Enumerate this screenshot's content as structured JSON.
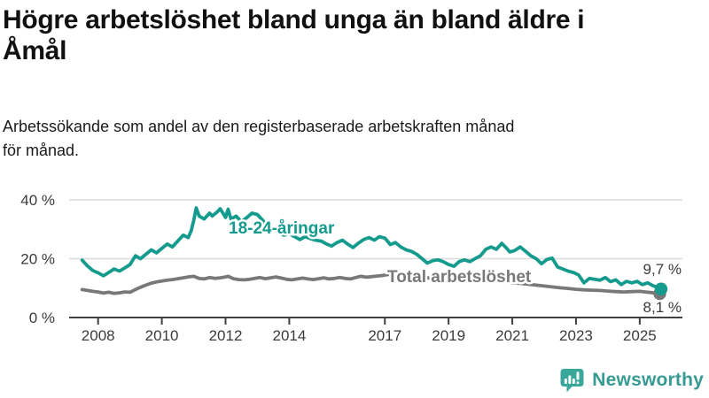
{
  "header": {
    "title_lines": [
      "Högre arbetslöshet bland unga än bland äldre i",
      "Åmål"
    ],
    "subtitle_lines": [
      "Arbetssökande som andel av den registerbaserade arbetskraften månad",
      "för månad."
    ]
  },
  "branding": {
    "name": "Newsworthy",
    "icon": "bar-chart-speech-bubble-icon",
    "color": "#379a93",
    "icon_color": "#3aa79b"
  },
  "chart_data": {
    "type": "line",
    "title": "Högre arbetslöshet bland unga än bland äldre i Åmål",
    "subtitle": "Arbetssökande som andel av den registerbaserade arbetskraften månad för månad.",
    "unit": "%",
    "xlim": [
      2007.4,
      2025.95
    ],
    "ylim": [
      0,
      42
    ],
    "grid": "horizontal",
    "legend_position": "inline-labels",
    "colors": {
      "young": "#149b8d",
      "total": "#787878",
      "axis": "#404040",
      "gridline": "#dcdcdc"
    },
    "yticks": [
      {
        "value": 0,
        "label": "0 %"
      },
      {
        "value": 20,
        "label": "20 %"
      },
      {
        "value": 40,
        "label": "40 %"
      }
    ],
    "xticks": [
      {
        "value": 2008,
        "label": "2008"
      },
      {
        "value": 2010,
        "label": "2010"
      },
      {
        "value": 2012,
        "label": "2012"
      },
      {
        "value": 2014,
        "label": "2014"
      },
      {
        "value": 2017,
        "label": "2017"
      },
      {
        "value": 2019,
        "label": "2019"
      },
      {
        "value": 2021,
        "label": "2021"
      },
      {
        "value": 2023,
        "label": "2023"
      },
      {
        "value": 2025,
        "label": "2025"
      }
    ],
    "series": [
      {
        "name": "18-24-åringar",
        "color": "#149b8d",
        "end_value_label": "9,7 %",
        "last_value": 9.7,
        "points": [
          [
            2007.5,
            19.5
          ],
          [
            2007.67,
            17.5
          ],
          [
            2007.83,
            16.0
          ],
          [
            2008.0,
            15.2
          ],
          [
            2008.17,
            14.2
          ],
          [
            2008.33,
            15.3
          ],
          [
            2008.5,
            16.5
          ],
          [
            2008.67,
            15.8
          ],
          [
            2008.83,
            16.8
          ],
          [
            2009.0,
            18.0
          ],
          [
            2009.17,
            21.0
          ],
          [
            2009.33,
            20.0
          ],
          [
            2009.5,
            21.5
          ],
          [
            2009.67,
            23.0
          ],
          [
            2009.83,
            22.0
          ],
          [
            2010.0,
            23.5
          ],
          [
            2010.17,
            25.0
          ],
          [
            2010.33,
            24.0
          ],
          [
            2010.5,
            26.0
          ],
          [
            2010.67,
            28.0
          ],
          [
            2010.83,
            27.2
          ],
          [
            2010.92,
            29.5
          ],
          [
            2011.0,
            33.0
          ],
          [
            2011.08,
            37.3
          ],
          [
            2011.17,
            34.5
          ],
          [
            2011.33,
            33.5
          ],
          [
            2011.5,
            35.5
          ],
          [
            2011.58,
            34.5
          ],
          [
            2011.75,
            36.0
          ],
          [
            2011.83,
            37.0
          ],
          [
            2011.92,
            35.5
          ],
          [
            2012.0,
            34.0
          ],
          [
            2012.08,
            36.8
          ],
          [
            2012.17,
            33.5
          ],
          [
            2012.33,
            34.5
          ],
          [
            2012.5,
            32.5
          ],
          [
            2012.67,
            34.0
          ],
          [
            2012.83,
            35.5
          ],
          [
            2013.0,
            35.0
          ],
          [
            2013.17,
            33.0
          ],
          [
            2013.33,
            31.0
          ],
          [
            2013.5,
            30.0
          ],
          [
            2013.67,
            29.0
          ],
          [
            2013.83,
            28.0
          ],
          [
            2014.0,
            28.5
          ],
          [
            2014.17,
            27.5
          ],
          [
            2014.33,
            26.5
          ],
          [
            2014.5,
            27.5
          ],
          [
            2014.67,
            26.8
          ],
          [
            2014.83,
            26.3
          ],
          [
            2015.0,
            26.0
          ],
          [
            2015.17,
            25.0
          ],
          [
            2015.33,
            24.3
          ],
          [
            2015.5,
            25.5
          ],
          [
            2015.67,
            26.3
          ],
          [
            2015.83,
            25.0
          ],
          [
            2016.0,
            23.8
          ],
          [
            2016.17,
            25.3
          ],
          [
            2016.33,
            26.5
          ],
          [
            2016.5,
            27.2
          ],
          [
            2016.67,
            26.3
          ],
          [
            2016.83,
            27.5
          ],
          [
            2017.0,
            27.0
          ],
          [
            2017.17,
            24.8
          ],
          [
            2017.33,
            25.5
          ],
          [
            2017.5,
            24.0
          ],
          [
            2017.67,
            23.0
          ],
          [
            2017.83,
            22.5
          ],
          [
            2018.0,
            21.5
          ],
          [
            2018.17,
            20.0
          ],
          [
            2018.33,
            18.5
          ],
          [
            2018.5,
            19.3
          ],
          [
            2018.67,
            19.6
          ],
          [
            2018.83,
            19.0
          ],
          [
            2019.0,
            18.0
          ],
          [
            2019.17,
            17.4
          ],
          [
            2019.33,
            19.0
          ],
          [
            2019.5,
            19.6
          ],
          [
            2019.67,
            19.0
          ],
          [
            2019.83,
            20.0
          ],
          [
            2020.0,
            21.0
          ],
          [
            2020.17,
            23.2
          ],
          [
            2020.33,
            24.0
          ],
          [
            2020.5,
            23.2
          ],
          [
            2020.67,
            25.2
          ],
          [
            2020.83,
            23.5
          ],
          [
            2020.92,
            22.3
          ],
          [
            2021.08,
            22.8
          ],
          [
            2021.25,
            24.0
          ],
          [
            2021.42,
            22.5
          ],
          [
            2021.58,
            21.0
          ],
          [
            2021.75,
            20.0
          ],
          [
            2021.92,
            18.3
          ],
          [
            2022.08,
            19.7
          ],
          [
            2022.25,
            20.2
          ],
          [
            2022.42,
            17.2
          ],
          [
            2022.58,
            16.5
          ],
          [
            2022.75,
            15.8
          ],
          [
            2022.92,
            15.3
          ],
          [
            2023.08,
            14.5
          ],
          [
            2023.25,
            11.8
          ],
          [
            2023.42,
            13.3
          ],
          [
            2023.58,
            13.0
          ],
          [
            2023.75,
            12.7
          ],
          [
            2023.92,
            13.6
          ],
          [
            2024.08,
            12.2
          ],
          [
            2024.25,
            12.8
          ],
          [
            2024.42,
            11.2
          ],
          [
            2024.58,
            12.3
          ],
          [
            2024.75,
            11.8
          ],
          [
            2024.92,
            12.3
          ],
          [
            2025.08,
            11.2
          ],
          [
            2025.25,
            11.8
          ],
          [
            2025.42,
            10.8
          ],
          [
            2025.58,
            10.2
          ],
          [
            2025.67,
            9.7
          ]
        ]
      },
      {
        "name": "Total arbetslöshet",
        "color": "#787878",
        "end_value_label": "8,1 %",
        "last_value": 8.1,
        "points": [
          [
            2007.5,
            9.5
          ],
          [
            2007.67,
            9.2
          ],
          [
            2007.83,
            8.9
          ],
          [
            2008.0,
            8.7
          ],
          [
            2008.17,
            8.3
          ],
          [
            2008.33,
            8.6
          ],
          [
            2008.5,
            8.2
          ],
          [
            2008.67,
            8.4
          ],
          [
            2008.83,
            8.7
          ],
          [
            2009.0,
            8.6
          ],
          [
            2009.17,
            9.5
          ],
          [
            2009.33,
            10.3
          ],
          [
            2009.5,
            11.0
          ],
          [
            2009.67,
            11.7
          ],
          [
            2009.83,
            12.1
          ],
          [
            2010.0,
            12.4
          ],
          [
            2010.17,
            12.7
          ],
          [
            2010.33,
            12.9
          ],
          [
            2010.5,
            13.2
          ],
          [
            2010.67,
            13.5
          ],
          [
            2010.83,
            13.8
          ],
          [
            2011.0,
            14.0
          ],
          [
            2011.17,
            13.3
          ],
          [
            2011.33,
            13.1
          ],
          [
            2011.5,
            13.6
          ],
          [
            2011.67,
            13.3
          ],
          [
            2011.83,
            13.5
          ],
          [
            2012.0,
            13.8
          ],
          [
            2012.08,
            14.0
          ],
          [
            2012.25,
            13.2
          ],
          [
            2012.42,
            12.9
          ],
          [
            2012.58,
            12.8
          ],
          [
            2012.75,
            13.0
          ],
          [
            2012.92,
            13.3
          ],
          [
            2013.08,
            13.6
          ],
          [
            2013.25,
            13.2
          ],
          [
            2013.42,
            13.5
          ],
          [
            2013.58,
            13.8
          ],
          [
            2013.75,
            13.4
          ],
          [
            2013.92,
            13.0
          ],
          [
            2014.08,
            12.8
          ],
          [
            2014.25,
            13.1
          ],
          [
            2014.42,
            13.4
          ],
          [
            2014.58,
            13.1
          ],
          [
            2014.75,
            12.9
          ],
          [
            2014.92,
            13.2
          ],
          [
            2015.08,
            13.5
          ],
          [
            2015.25,
            13.1
          ],
          [
            2015.42,
            13.3
          ],
          [
            2015.58,
            13.6
          ],
          [
            2015.75,
            13.3
          ],
          [
            2015.92,
            13.1
          ],
          [
            2016.08,
            13.6
          ],
          [
            2016.25,
            14.0
          ],
          [
            2016.42,
            13.7
          ],
          [
            2016.58,
            13.9
          ],
          [
            2016.75,
            14.1
          ],
          [
            2016.92,
            14.3
          ],
          [
            2017.08,
            14.6
          ],
          [
            2017.25,
            14.8
          ],
          [
            2017.5,
            14.5
          ],
          [
            2017.75,
            14.2
          ],
          [
            2018.0,
            13.9
          ],
          [
            2018.25,
            13.6
          ],
          [
            2018.5,
            13.3
          ],
          [
            2018.75,
            13.0
          ],
          [
            2019.0,
            12.8
          ],
          [
            2019.25,
            12.5
          ],
          [
            2019.5,
            12.3
          ],
          [
            2019.75,
            12.4
          ],
          [
            2020.0,
            12.6
          ],
          [
            2020.25,
            12.7
          ],
          [
            2020.5,
            12.4
          ],
          [
            2020.75,
            12.1
          ],
          [
            2021.0,
            11.8
          ],
          [
            2021.25,
            11.6
          ],
          [
            2021.5,
            11.3
          ],
          [
            2021.75,
            11.0
          ],
          [
            2022.0,
            10.7
          ],
          [
            2022.25,
            10.4
          ],
          [
            2022.5,
            10.1
          ],
          [
            2022.75,
            9.9
          ],
          [
            2023.0,
            9.6
          ],
          [
            2023.25,
            9.4
          ],
          [
            2023.5,
            9.3
          ],
          [
            2023.75,
            9.2
          ],
          [
            2024.0,
            9.0
          ],
          [
            2024.25,
            8.8
          ],
          [
            2024.5,
            8.7
          ],
          [
            2024.75,
            8.8
          ],
          [
            2025.0,
            8.9
          ],
          [
            2025.17,
            8.7
          ],
          [
            2025.33,
            8.5
          ],
          [
            2025.5,
            8.3
          ],
          [
            2025.67,
            8.1
          ]
        ]
      }
    ]
  }
}
